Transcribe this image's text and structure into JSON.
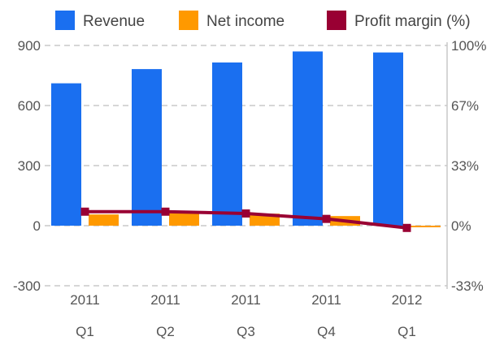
{
  "chart_data": {
    "type": "bar",
    "title": "",
    "categories": [
      {
        "year": "2011",
        "quarter": "Q1"
      },
      {
        "year": "2011",
        "quarter": "Q2"
      },
      {
        "year": "2011",
        "quarter": "Q3"
      },
      {
        "year": "2011",
        "quarter": "Q4"
      },
      {
        "year": "2012",
        "quarter": "Q1"
      }
    ],
    "series": [
      {
        "name": "Revenue",
        "type": "bar",
        "axis": "left",
        "color": "#1a6ff0",
        "values": [
          711,
          782,
          815,
          870,
          865
        ]
      },
      {
        "name": "Net income",
        "type": "bar",
        "axis": "left",
        "color": "#ff9900",
        "values": [
          56,
          62,
          60,
          48,
          -8
        ]
      },
      {
        "name": "Profit margin (%)",
        "type": "line",
        "axis": "right",
        "color": "#990033",
        "values": [
          8,
          8,
          7,
          4,
          -1
        ]
      }
    ],
    "y_left": {
      "min": -300,
      "max": 900,
      "ticks": [
        "-300",
        "0",
        "300",
        "600",
        "900"
      ]
    },
    "y_right": {
      "min": -33,
      "max": 100,
      "ticks": [
        "-33%",
        "0%",
        "33%",
        "67%",
        "100%"
      ]
    },
    "grid": true,
    "legend_position": "top"
  }
}
